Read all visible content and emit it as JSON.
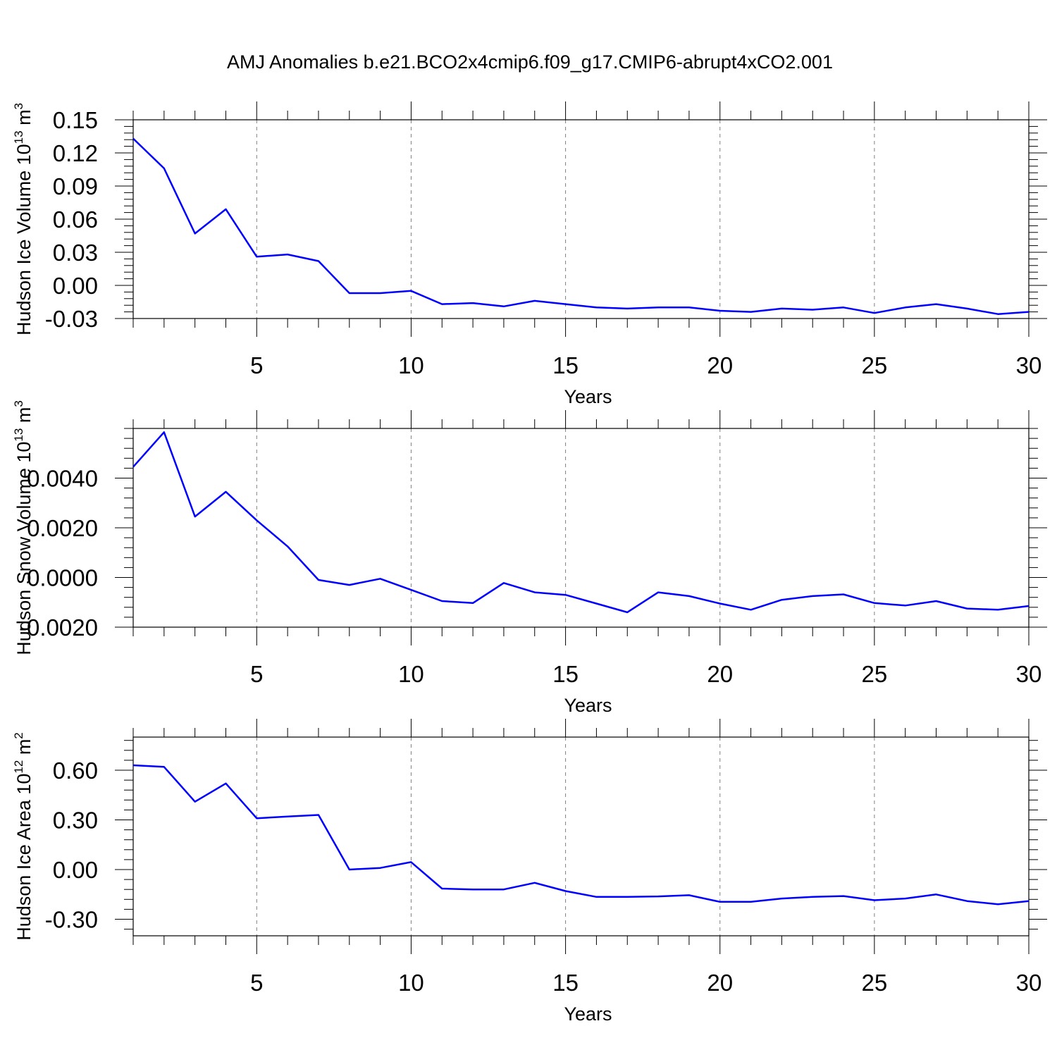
{
  "title": "AMJ Anomalies b.e21.BCO2x4cmip6.f09_g17.CMIP6-abrupt4xCO2.001",
  "colors": {
    "line": "#0000ff",
    "axis": "#000000",
    "grid": "#808080"
  },
  "chart_data": [
    {
      "type": "line",
      "xlabel": "Years",
      "ylabel_prefix": "Hudson Ice Volume 10",
      "ylabel_exp": "13",
      "ylabel_unit": " m",
      "ylabel_unit_exp": "3",
      "xlim": [
        1,
        30
      ],
      "ylim": [
        -0.03,
        0.15
      ],
      "yticks": [
        -0.03,
        0.0,
        0.03,
        0.06,
        0.09,
        0.12,
        0.15
      ],
      "ytick_labels": [
        "-0.03",
        "0.00",
        "0.03",
        "0.06",
        "0.09",
        "0.12",
        "0.15"
      ],
      "xticks": [
        5,
        10,
        15,
        20,
        25,
        30
      ],
      "xtick_labels": [
        "5",
        "10",
        "15",
        "20",
        "25",
        "30"
      ],
      "x": [
        1,
        2,
        3,
        4,
        5,
        6,
        7,
        8,
        9,
        10,
        11,
        12,
        13,
        14,
        15,
        16,
        17,
        18,
        19,
        20,
        21,
        22,
        23,
        24,
        25,
        26,
        27,
        28,
        29,
        30
      ],
      "values": [
        0.133,
        0.106,
        0.047,
        0.069,
        0.026,
        0.028,
        0.022,
        -0.007,
        -0.007,
        -0.005,
        -0.017,
        -0.016,
        -0.019,
        -0.014,
        -0.017,
        -0.02,
        -0.021,
        -0.02,
        -0.02,
        -0.023,
        -0.024,
        -0.021,
        -0.022,
        -0.02,
        -0.025,
        -0.02,
        -0.017,
        -0.021,
        -0.026,
        -0.024
      ]
    },
    {
      "type": "line",
      "xlabel": "Years",
      "ylabel_prefix": "Hudson Snow Volume 10",
      "ylabel_exp": "13",
      "ylabel_unit": " m",
      "ylabel_unit_exp": "3",
      "xlim": [
        1,
        30
      ],
      "ylim": [
        -0.002,
        0.006
      ],
      "yticks": [
        -0.002,
        0.0,
        0.002,
        0.004
      ],
      "ytick_labels": [
        "-0.0020",
        "0.0000",
        "0.0020",
        "0.0040"
      ],
      "xticks": [
        5,
        10,
        15,
        20,
        25,
        30
      ],
      "xtick_labels": [
        "5",
        "10",
        "15",
        "20",
        "25",
        "30"
      ],
      "x": [
        1,
        2,
        3,
        4,
        5,
        6,
        7,
        8,
        9,
        10,
        11,
        12,
        13,
        14,
        15,
        16,
        17,
        18,
        19,
        20,
        21,
        22,
        23,
        24,
        25,
        26,
        27,
        28,
        29,
        30
      ],
      "values": [
        0.00445,
        0.00585,
        0.00245,
        0.00345,
        0.0023,
        0.00125,
        -0.0001,
        -0.0003,
        -5e-05,
        -0.0005,
        -0.00095,
        -0.00103,
        -0.00022,
        -0.0006,
        -0.0007,
        -0.00105,
        -0.0014,
        -0.0006,
        -0.00075,
        -0.00105,
        -0.0013,
        -0.0009,
        -0.00075,
        -0.00068,
        -0.00103,
        -0.00113,
        -0.00095,
        -0.00125,
        -0.0013,
        -0.00115
      ]
    },
    {
      "type": "line",
      "xlabel": "Years",
      "ylabel_prefix": "Hudson Ice Area 10",
      "ylabel_exp": "12",
      "ylabel_unit": " m",
      "ylabel_unit_exp": "2",
      "xlim": [
        1,
        30
      ],
      "ylim": [
        -0.4,
        0.8
      ],
      "yticks": [
        -0.3,
        0.0,
        0.3,
        0.6
      ],
      "ytick_labels": [
        "-0.30",
        "0.00",
        "0.30",
        "0.60"
      ],
      "xticks": [
        5,
        10,
        15,
        20,
        25,
        30
      ],
      "xtick_labels": [
        "5",
        "10",
        "15",
        "20",
        "25",
        "30"
      ],
      "x": [
        1,
        2,
        3,
        4,
        5,
        6,
        7,
        8,
        9,
        10,
        11,
        12,
        13,
        14,
        15,
        16,
        17,
        18,
        19,
        20,
        21,
        22,
        23,
        24,
        25,
        26,
        27,
        28,
        29,
        30
      ],
      "values": [
        0.63,
        0.62,
        0.41,
        0.52,
        0.31,
        0.32,
        0.33,
        0.0,
        0.01,
        0.045,
        -0.115,
        -0.12,
        -0.12,
        -0.08,
        -0.13,
        -0.165,
        -0.165,
        -0.162,
        -0.155,
        -0.195,
        -0.195,
        -0.175,
        -0.165,
        -0.16,
        -0.185,
        -0.175,
        -0.15,
        -0.19,
        -0.21,
        -0.19
      ]
    }
  ]
}
